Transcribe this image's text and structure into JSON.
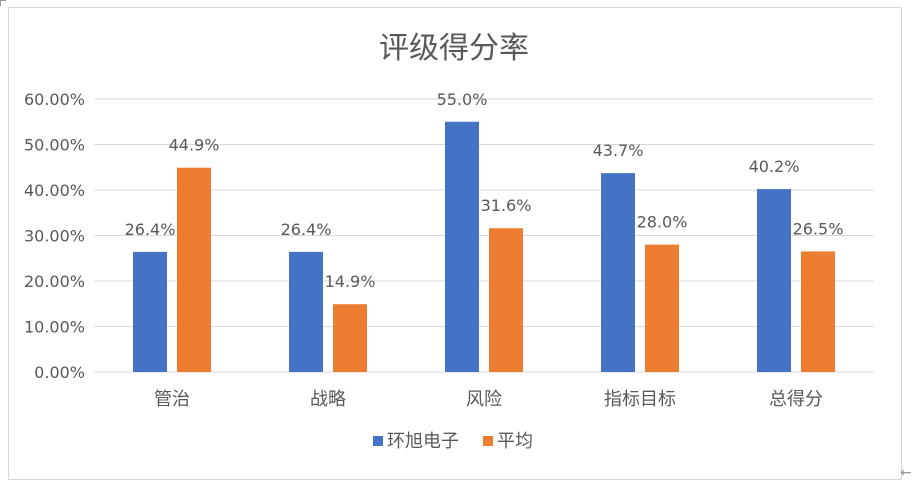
{
  "chart_data": {
    "type": "bar",
    "title": "评级得分率",
    "categories": [
      "管治",
      "战略",
      "风险",
      "指标目标",
      "总得分"
    ],
    "series": [
      {
        "name": "环旭电子",
        "values": [
          26.4,
          26.4,
          55.0,
          43.7,
          40.2
        ],
        "labels": [
          "26.4%",
          "26.4%",
          "55.0%",
          "43.7%",
          "40.2%"
        ],
        "color": "#4472C4"
      },
      {
        "name": "平均",
        "values": [
          44.9,
          14.9,
          31.6,
          28.0,
          26.5
        ],
        "labels": [
          "44.9%",
          "14.9%",
          "31.6%",
          "28.0%",
          "26.5%"
        ],
        "color": "#ED7D31"
      }
    ],
    "ylim": [
      0,
      60
    ],
    "yticks": [
      0,
      10,
      20,
      30,
      40,
      50,
      60
    ],
    "ytick_labels": [
      "0.00%",
      "10.00%",
      "20.00%",
      "30.00%",
      "40.00%",
      "50.00%",
      "60.00%"
    ],
    "xlabel": "",
    "ylabel": "",
    "grid": true,
    "legend": "bottom",
    "colors": {
      "gridline": "#d9d9d9",
      "text": "#595959",
      "title": "#595959"
    }
  }
}
